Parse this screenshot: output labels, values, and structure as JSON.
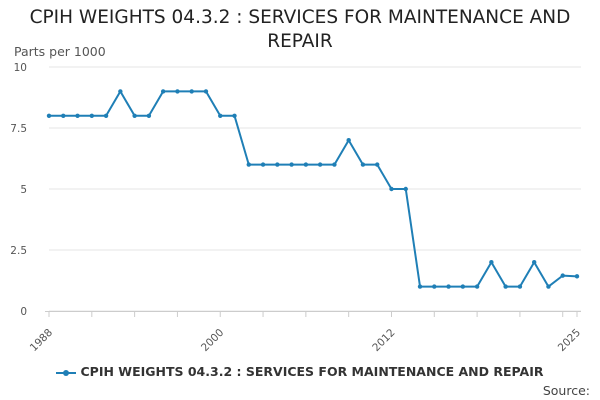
{
  "chart_data": {
    "type": "line",
    "title": "CPIH WEIGHTS 04.3.2 : SERVICES FOR MAINTENANCE AND REPAIR",
    "ylabel": "Parts per 1000",
    "xlabel": "",
    "x": [
      1988,
      1989,
      1990,
      1991,
      1992,
      1993,
      1994,
      1995,
      1996,
      1997,
      1998,
      1999,
      2000,
      2001,
      2002,
      2003,
      2004,
      2005,
      2006,
      2007,
      2008,
      2009,
      2010,
      2011,
      2012,
      2013,
      2014,
      2015,
      2016,
      2017,
      2018,
      2019,
      2020,
      2021,
      2022,
      2023,
      2024,
      2025
    ],
    "series": [
      {
        "name": "CPIH WEIGHTS 04.3.2 : SERVICES FOR MAINTENANCE AND REPAIR",
        "color": "#1f7fb6",
        "values": [
          8,
          8,
          8,
          8,
          8,
          9,
          8,
          8,
          9,
          9,
          9,
          9,
          8,
          8,
          6,
          6,
          6,
          6,
          6,
          6,
          6,
          7,
          6,
          6,
          5,
          5,
          1,
          1,
          1,
          1,
          1,
          2,
          1,
          1,
          2,
          1,
          1.45,
          1.42
        ]
      }
    ],
    "ylim": [
      0,
      10
    ],
    "yticks": [
      0,
      2.5,
      5,
      7.5,
      10
    ],
    "ytick_labels": [
      "0",
      "2.5",
      "5",
      "7.5",
      "10"
    ],
    "xlim": [
      1988,
      2025
    ],
    "xticks": [
      1988,
      2000,
      2012,
      2025
    ],
    "xtick_labels": [
      "1988",
      "2000",
      "2012",
      "2025"
    ],
    "grid": true,
    "legend_position": "bottom"
  },
  "source_label": "Source:"
}
